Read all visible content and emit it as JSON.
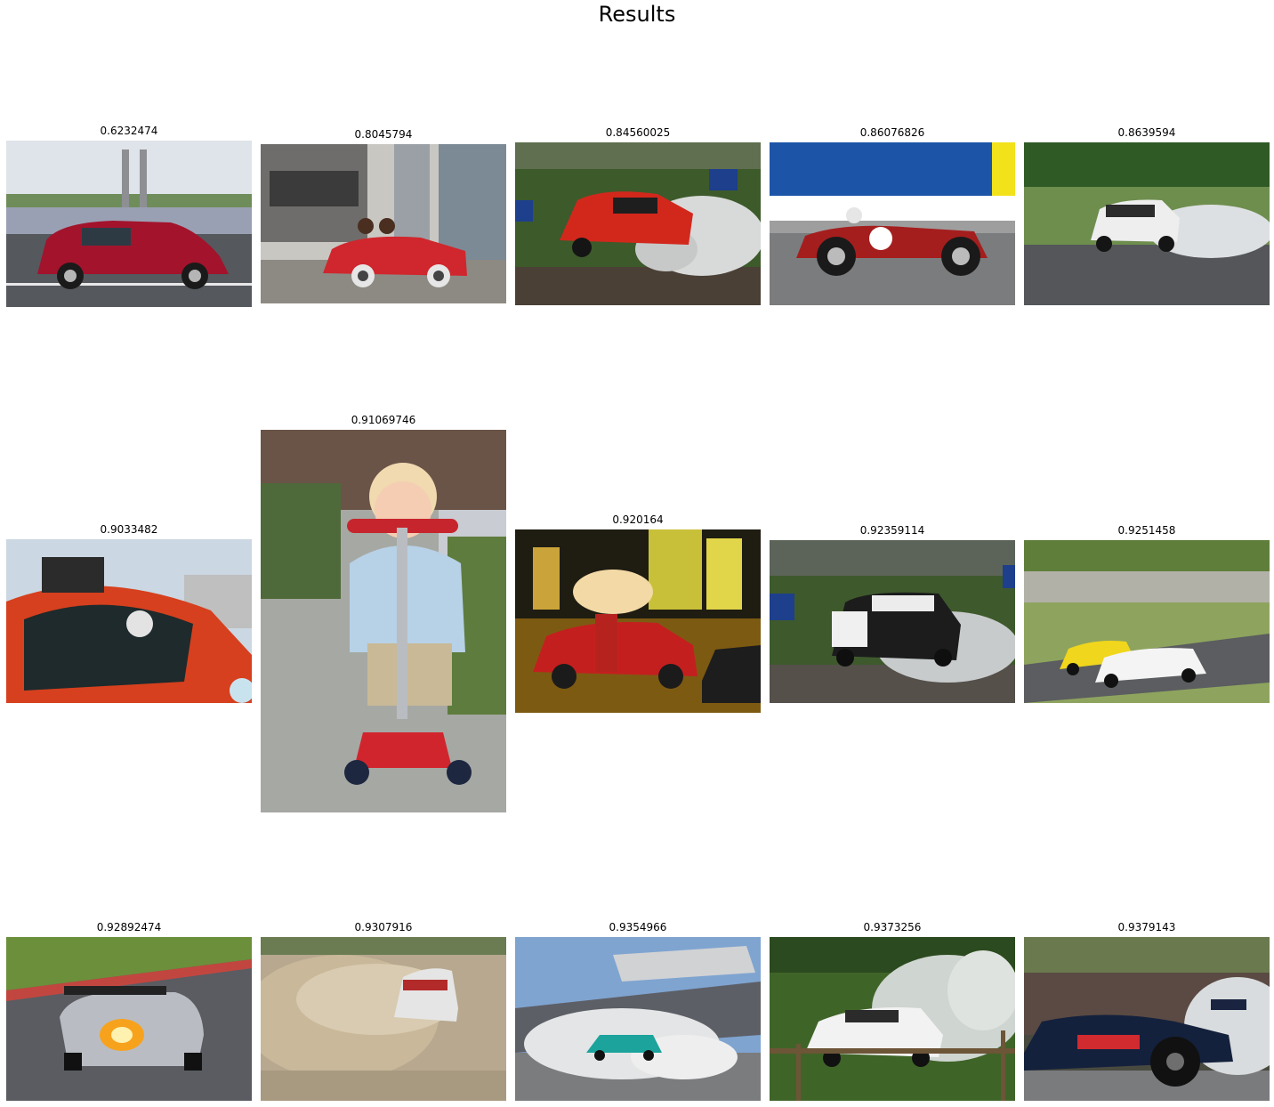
{
  "title": "Results",
  "results": [
    {
      "score": "0.6232474",
      "scene": "red-hatchback-street"
    },
    {
      "score": "0.8045794",
      "scene": "kids-toy-car-gas-station"
    },
    {
      "score": "0.84560025",
      "scene": "red-rally-car-smoke"
    },
    {
      "score": "0.86076826",
      "scene": "vintage-red-race-car"
    },
    {
      "score": "0.8639594",
      "scene": "white-rally-car-smoke"
    },
    {
      "score": "0.9033482",
      "scene": "race-car-cockpit-driver"
    },
    {
      "score": "0.91069746",
      "scene": "child-red-scooter"
    },
    {
      "score": "0.920164",
      "scene": "red-car-city-night"
    },
    {
      "score": "0.92359114",
      "scene": "black-white-rally-car"
    },
    {
      "score": "0.9251458",
      "scene": "two-touring-cars-track"
    },
    {
      "score": "0.92892474",
      "scene": "race-car-exhaust-flame"
    },
    {
      "score": "0.9307916",
      "scene": "car-dust-cloud"
    },
    {
      "score": "0.9354966",
      "scene": "drift-car-stadium-smoke"
    },
    {
      "score": "0.9373256",
      "scene": "rally-car-water-splash"
    },
    {
      "score": "0.9379143",
      "scene": "f1-car-burnout-crowd"
    }
  ]
}
